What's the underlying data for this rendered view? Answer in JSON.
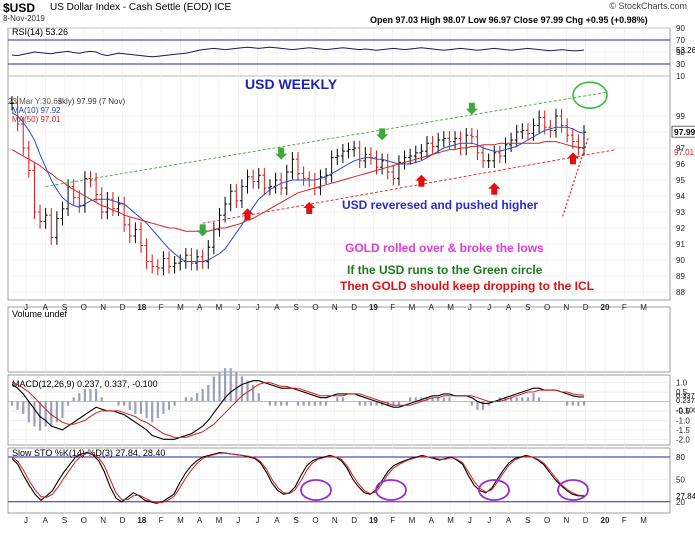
{
  "header": {
    "symbol": "$USD",
    "name": "US Dollar Index - Cash Settle (EOD)",
    "exchange": "ICE",
    "date": "8-Nov-2019",
    "ohlc": "Open 97.03  High 98.07  Low 96.97  Close 97.99  Chg +0.95 (+0.98%)",
    "watermark": "© StockCharts.com"
  },
  "chart_data": {
    "type": "line",
    "title": "USD WEEKLY",
    "x_months": [
      "J",
      "A",
      "S",
      "O",
      "N",
      "D",
      "18",
      "F",
      "M",
      "A",
      "M",
      "J",
      "J",
      "A",
      "S",
      "O",
      "N",
      "D",
      "19",
      "F",
      "M",
      "A",
      "M",
      "J",
      "J",
      "A",
      "S",
      "O",
      "N",
      "D",
      "20",
      "F",
      "M"
    ],
    "price_panel": {
      "ylim": [
        87.5,
        101.5
      ],
      "yticks": [
        88,
        89,
        90,
        91,
        92,
        93,
        94,
        95,
        96,
        97,
        98,
        99
      ],
      "legend": [
        "23 Mar Y:30.63",
        "skly) 97.99 (7 Nov)",
        "MA(10) 97.92",
        "MA(50) 97.01"
      ],
      "last_price_label": "97.99",
      "ma50_label": "97.01",
      "close": [
        99.8,
        98.5,
        97.0,
        95.6,
        93.0,
        92.4,
        92.8,
        91.4,
        92.6,
        93.2,
        94.6,
        93.9,
        93.4,
        95.1,
        95.0,
        94.1,
        93.0,
        93.8,
        93.2,
        93.5,
        92.2,
        91.5,
        91.9,
        90.9,
        89.9,
        89.6,
        89.5,
        90.1,
        89.6,
        89.8,
        89.9,
        90.3,
        89.8,
        90.2,
        89.9,
        90.8,
        91.9,
        92.8,
        93.5,
        94.3,
        93.7,
        94.6,
        95.2,
        94.9,
        95.3,
        94.5,
        94.6,
        95.0,
        94.5,
        95.5,
        96.3,
        95.4,
        95.1,
        95.0,
        94.5,
        95.2,
        95.3,
        96.4,
        96.5,
        96.8,
        96.9,
        97.0,
        96.2,
        96.6,
        96.4,
        95.8,
        96.2,
        95.5,
        95.1,
        96.1,
        96.4,
        96.5,
        96.7,
        96.8,
        97.3,
        97.1,
        97.5,
        97.6,
        97.4,
        97.6,
        97.0,
        97.8,
        97.7,
        96.7,
        96.2,
        96.2,
        96.7,
        96.5,
        97.2,
        97.5,
        98.0,
        98.1,
        97.9,
        98.4,
        98.9,
        98.3,
        98.1,
        99.0,
        98.4,
        97.8,
        97.4,
        97.0,
        97.99
      ],
      "ma10": [
        99.2,
        99.0,
        98.6,
        98.1,
        97.5,
        96.6,
        95.8,
        95.0,
        94.4,
        93.9,
        93.6,
        93.4,
        93.3,
        93.5,
        93.7,
        93.8,
        93.8,
        93.8,
        93.7,
        93.6,
        93.5,
        93.2,
        92.9,
        92.6,
        92.3,
        91.9,
        91.5,
        91.1,
        90.7,
        90.4,
        90.1,
        89.9,
        89.9,
        89.9,
        89.9,
        90.0,
        90.2,
        90.4,
        90.7,
        91.2,
        91.7,
        92.2,
        92.8,
        93.3,
        93.8,
        94.1,
        94.4,
        94.6,
        94.8,
        94.9,
        95.0,
        95.0,
        95.0,
        95.0,
        95.0,
        95.1,
        95.2,
        95.4,
        95.6,
        95.8,
        96.0,
        96.2,
        96.3,
        96.4,
        96.4,
        96.3,
        96.3,
        96.2,
        96.1,
        96.0,
        96.0,
        96.0,
        96.1,
        96.2,
        96.4,
        96.6,
        96.8,
        97.0,
        97.1,
        97.2,
        97.3,
        97.3,
        97.3,
        97.2,
        97.0,
        96.9,
        96.8,
        96.8,
        96.9,
        97.0,
        97.1,
        97.3,
        97.5,
        97.7,
        97.9,
        98.1,
        98.2,
        98.3,
        98.3,
        98.3,
        98.2,
        98.0,
        97.92
      ],
      "ma50": [
        96.9,
        96.7,
        96.5,
        96.3,
        96.1,
        95.9,
        95.6,
        95.4,
        95.1,
        94.9,
        94.6,
        94.4,
        94.2,
        94.0,
        93.8,
        93.6,
        93.4,
        93.3,
        93.1,
        93.0,
        92.8,
        92.7,
        92.6,
        92.5,
        92.4,
        92.3,
        92.2,
        92.1,
        92.0,
        92.0,
        91.9,
        91.8,
        91.8,
        91.8,
        91.8,
        91.8,
        91.9,
        92.0,
        92.0,
        92.1,
        92.2,
        92.3,
        92.5,
        92.6,
        92.8,
        93.0,
        93.2,
        93.4,
        93.6,
        93.8,
        94.0,
        94.2,
        94.3,
        94.4,
        94.5,
        94.6,
        94.7,
        94.8,
        94.9,
        95.0,
        95.1,
        95.2,
        95.3,
        95.4,
        95.5,
        95.6,
        95.7,
        95.8,
        95.9,
        96.0,
        96.1,
        96.2,
        96.3,
        96.4,
        96.5,
        96.6,
        96.7,
        96.8,
        96.9,
        96.9,
        97.0,
        97.0,
        97.1,
        97.1,
        97.2,
        97.2,
        97.2,
        97.3,
        97.3,
        97.3,
        97.3,
        97.3,
        97.3,
        97.3,
        97.3,
        97.4,
        97.4,
        97.4,
        97.3,
        97.2,
        97.1,
        97.05,
        97.01
      ]
    },
    "rsi_panel": {
      "label": "RSI(14) 53.26",
      "ylim": [
        10,
        90
      ],
      "yticks": [
        10,
        30,
        50,
        70,
        90
      ],
      "levels": [
        70,
        30
      ],
      "value_label": "53.26",
      "values": [
        45,
        44,
        46,
        48,
        50,
        49,
        48,
        47,
        49,
        50,
        51,
        49,
        48,
        50,
        51,
        50,
        46,
        44,
        46,
        48,
        47,
        46,
        45,
        44,
        43,
        42,
        43,
        44,
        45,
        46,
        47,
        48,
        50,
        52,
        54,
        55,
        56,
        55,
        54,
        55,
        56,
        57,
        58,
        57,
        56,
        57,
        58,
        57,
        56,
        55,
        54,
        55,
        56,
        57,
        56,
        55,
        54,
        55,
        56,
        57,
        56,
        55,
        54,
        55,
        54,
        53,
        54,
        55,
        56,
        55,
        54,
        55,
        56,
        57,
        56,
        55,
        54,
        53,
        54,
        55,
        56,
        55,
        54,
        53,
        54,
        55,
        56,
        55,
        54,
        53,
        54,
        55,
        56,
        55,
        54,
        53,
        52,
        53,
        54,
        53,
        52,
        52,
        53.26
      ]
    },
    "volume_panel": {
      "label": "Volume undef"
    },
    "macd_panel": {
      "label": "MACD(12,26,9) 0.237, 0.337, -0.100",
      "ylim": [
        -2.3,
        1.4
      ],
      "yticks": [
        1.0,
        0.5,
        -0.5,
        -1.0,
        -1.5,
        -2.0
      ],
      "value_labels": [
        "0.337",
        "0.237",
        "-0.100"
      ],
      "macd": [
        0.9,
        0.7,
        0.4,
        0.0,
        -0.4,
        -0.8,
        -1.0,
        -1.3,
        -1.4,
        -1.5,
        -1.3,
        -1.1,
        -0.9,
        -0.7,
        -0.5,
        -0.3,
        -0.4,
        -0.5,
        -0.5,
        -0.6,
        -0.7,
        -0.9,
        -1.1,
        -1.3,
        -1.5,
        -1.8,
        -1.9,
        -2.0,
        -2.0,
        -2.0,
        -1.9,
        -1.8,
        -1.7,
        -1.5,
        -1.3,
        -1.0,
        -0.6,
        -0.2,
        0.2,
        0.5,
        0.7,
        0.9,
        1.0,
        1.1,
        1.1,
        1.0,
        0.9,
        0.8,
        0.7,
        0.7,
        0.7,
        0.6,
        0.5,
        0.4,
        0.3,
        0.2,
        0.2,
        0.3,
        0.4,
        0.4,
        0.4,
        0.4,
        0.3,
        0.2,
        0.1,
        0.0,
        -0.1,
        -0.2,
        -0.3,
        -0.3,
        -0.2,
        -0.1,
        0.0,
        0.1,
        0.2,
        0.3,
        0.3,
        0.4,
        0.4,
        0.3,
        0.3,
        0.3,
        0.2,
        0.0,
        -0.1,
        -0.1,
        0.0,
        0.1,
        0.2,
        0.3,
        0.4,
        0.5,
        0.6,
        0.7,
        0.7,
        0.6,
        0.6,
        0.6,
        0.5,
        0.4,
        0.3,
        0.25,
        0.237
      ],
      "signal": [
        1.0,
        0.9,
        0.7,
        0.5,
        0.2,
        -0.1,
        -0.4,
        -0.7,
        -0.9,
        -1.1,
        -1.2,
        -1.2,
        -1.1,
        -1.0,
        -0.8,
        -0.6,
        -0.5,
        -0.5,
        -0.5,
        -0.5,
        -0.6,
        -0.7,
        -0.8,
        -1.0,
        -1.1,
        -1.3,
        -1.5,
        -1.7,
        -1.8,
        -1.9,
        -1.9,
        -1.9,
        -1.8,
        -1.7,
        -1.6,
        -1.4,
        -1.2,
        -0.9,
        -0.6,
        -0.3,
        0.0,
        0.3,
        0.5,
        0.7,
        0.9,
        1.0,
        1.0,
        0.9,
        0.8,
        0.8,
        0.7,
        0.7,
        0.6,
        0.5,
        0.4,
        0.3,
        0.3,
        0.3,
        0.3,
        0.3,
        0.4,
        0.4,
        0.4,
        0.3,
        0.2,
        0.1,
        0.0,
        -0.1,
        -0.2,
        -0.2,
        -0.2,
        -0.2,
        -0.1,
        0.0,
        0.1,
        0.2,
        0.2,
        0.3,
        0.3,
        0.3,
        0.3,
        0.3,
        0.3,
        0.2,
        0.1,
        0.0,
        0.0,
        0.0,
        0.1,
        0.2,
        0.3,
        0.4,
        0.5,
        0.5,
        0.6,
        0.6,
        0.6,
        0.6,
        0.5,
        0.5,
        0.4,
        0.36,
        0.337
      ]
    },
    "sto_panel": {
      "label": "Slow STO %K(14) %D(3) 27.84, 28.40",
      "ylim": [
        5,
        92
      ],
      "yticks": [
        80,
        50,
        20
      ],
      "levels": [
        80,
        20
      ],
      "value_label": "27.84",
      "k": [
        78,
        70,
        55,
        42,
        30,
        22,
        28,
        35,
        48,
        60,
        70,
        80,
        84,
        86,
        83,
        75,
        60,
        40,
        25,
        20,
        26,
        32,
        28,
        22,
        20,
        18,
        20,
        25,
        30,
        45,
        58,
        68,
        75,
        80,
        82,
        84,
        86,
        85,
        84,
        83,
        82,
        80,
        78,
        72,
        60,
        45,
        35,
        30,
        32,
        40,
        55,
        68,
        75,
        78,
        80,
        82,
        80,
        75,
        65,
        50,
        40,
        32,
        30,
        36,
        48,
        60,
        68,
        72,
        75,
        78,
        80,
        82,
        80,
        78,
        76,
        78,
        80,
        76,
        70,
        55,
        42,
        35,
        32,
        38,
        50,
        62,
        72,
        78,
        80,
        82,
        80,
        76,
        70,
        60,
        50,
        42,
        35,
        30,
        28,
        27.84
      ],
      "d": [
        80,
        74,
        62,
        48,
        36,
        27,
        26,
        30,
        40,
        52,
        63,
        74,
        81,
        85,
        84,
        79,
        68,
        50,
        32,
        23,
        23,
        28,
        29,
        25,
        21,
        19,
        19,
        22,
        27,
        38,
        51,
        62,
        71,
        78,
        81,
        83,
        85,
        85,
        84,
        83,
        82,
        81,
        79,
        74,
        64,
        50,
        39,
        32,
        31,
        36,
        48,
        62,
        72,
        77,
        79,
        81,
        80,
        77,
        68,
        55,
        44,
        35,
        31,
        33,
        44,
        56,
        65,
        70,
        74,
        77,
        79,
        81,
        80,
        79,
        77,
        77,
        79,
        77,
        72,
        60,
        47,
        38,
        33,
        36,
        46,
        58,
        69,
        76,
        79,
        81,
        80,
        77,
        72,
        63,
        53,
        44,
        37,
        32,
        29,
        28.4
      ]
    },
    "annotations": {
      "texts": [
        {
          "text": "USD reveresed and pushed higher",
          "color": "#2b2bd0"
        },
        {
          "text": "GOLD rolled over & broke the lows",
          "color": "#e23ad6"
        },
        {
          "text": "If the USD runs to the Green circle",
          "color": "#1d7a1d"
        },
        {
          "text": "Then GOLD should keep dropping to the ICL",
          "color": "#e01010"
        }
      ],
      "green_arrows_at_index": [
        34,
        48,
        66,
        82
      ],
      "red_arrows_at_index": [
        42,
        53,
        73,
        86
      ]
    }
  }
}
